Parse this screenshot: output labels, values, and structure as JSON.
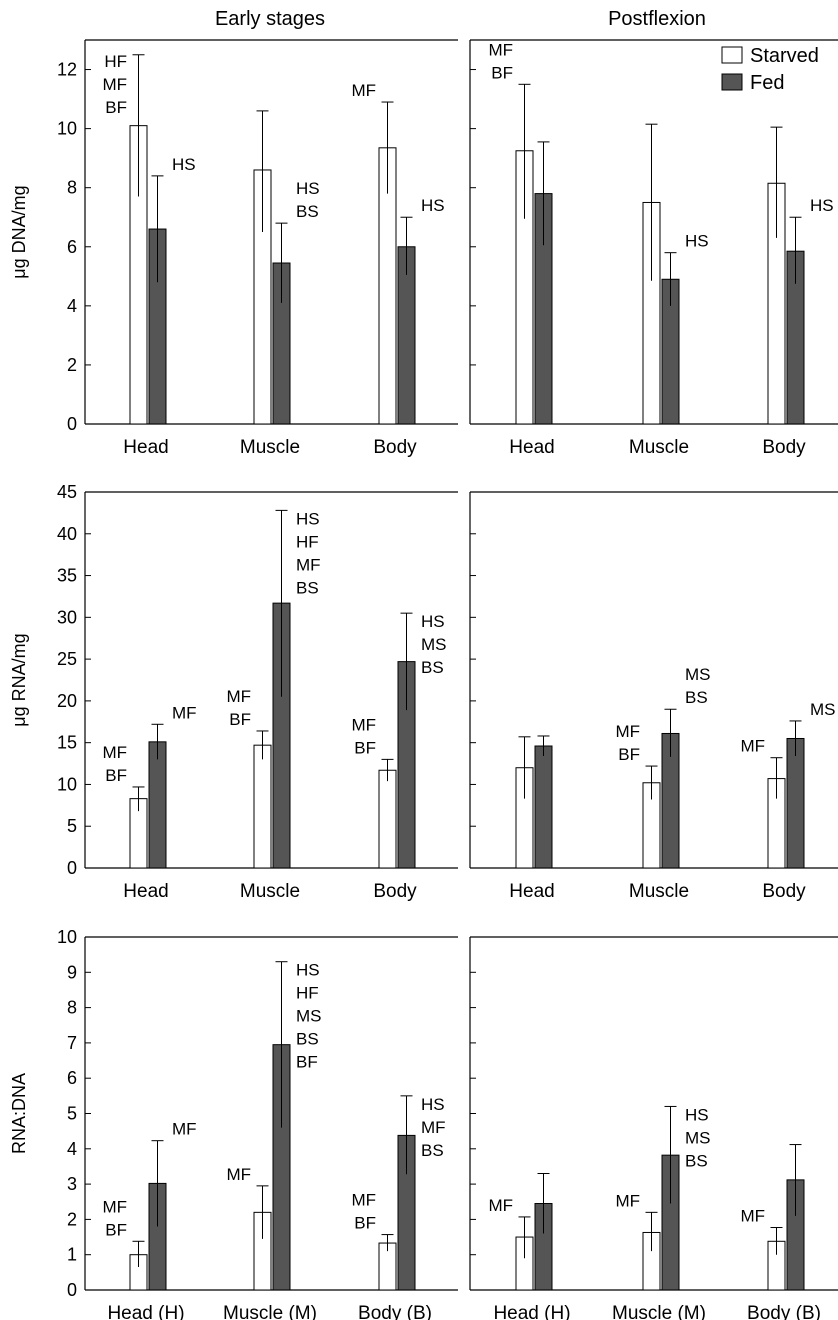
{
  "titles": [
    "Early stages",
    "Postflexion"
  ],
  "legend": [
    {
      "label": "Starved",
      "color": "#ffffff"
    },
    {
      "label": "Fed",
      "color": "#555555"
    }
  ],
  "colors": {
    "starved": "#ffffff",
    "fed": "#555555",
    "axis": "#000000"
  },
  "chart_data": [
    {
      "type": "bar",
      "panel": "Early stages - DNA",
      "ylabel": "μg DNA/mg",
      "ylim": [
        0,
        13
      ],
      "yticks": [
        0,
        2,
        4,
        6,
        8,
        10,
        12
      ],
      "categories": [
        "Head",
        "Muscle",
        "Body"
      ],
      "series": [
        {
          "name": "Starved",
          "values": [
            10.1,
            8.6,
            9.35
          ],
          "lower": [
            7.7,
            6.5,
            7.8
          ],
          "upper": [
            12.5,
            10.6,
            10.9
          ]
        },
        {
          "name": "Fed",
          "values": [
            6.6,
            5.45,
            6.0
          ],
          "lower": [
            4.8,
            4.1,
            5.05
          ],
          "upper": [
            8.4,
            6.8,
            7.0
          ]
        }
      ],
      "annotations": [
        [
          [
            "HF",
            "MF",
            "BF"
          ],
          [
            "HS"
          ]
        ],
        [
          [],
          [
            "HS",
            "BS"
          ]
        ],
        [
          [
            "MF"
          ],
          [
            "HS"
          ]
        ]
      ]
    },
    {
      "type": "bar",
      "panel": "Postflexion - DNA",
      "ylabel": "μg DNA/mg",
      "ylim": [
        0,
        13
      ],
      "yticks": [
        0,
        2,
        4,
        6,
        8,
        10,
        12
      ],
      "categories": [
        "Head",
        "Muscle",
        "Body"
      ],
      "series": [
        {
          "name": "Starved",
          "values": [
            9.25,
            7.5,
            8.15
          ],
          "lower": [
            6.95,
            4.85,
            6.3
          ],
          "upper": [
            11.5,
            10.15,
            10.05
          ]
        },
        {
          "name": "Fed",
          "values": [
            7.8,
            4.9,
            5.85
          ],
          "lower": [
            6.05,
            4.0,
            4.75
          ],
          "upper": [
            9.55,
            5.8,
            7.0
          ]
        }
      ],
      "annotations": [
        [
          [
            "MF",
            "BF"
          ],
          []
        ],
        [
          [],
          [
            "HS"
          ]
        ],
        [
          [],
          [
            "HS"
          ]
        ]
      ]
    },
    {
      "type": "bar",
      "panel": "Early stages - RNA",
      "ylabel": "μg RNA/mg",
      "ylim": [
        0,
        45
      ],
      "yticks": [
        0,
        5,
        10,
        15,
        20,
        25,
        30,
        35,
        40,
        45
      ],
      "categories": [
        "Head",
        "Muscle",
        "Body"
      ],
      "series": [
        {
          "name": "Starved",
          "values": [
            8.3,
            14.7,
            11.7
          ],
          "lower": [
            6.8,
            13.0,
            10.4
          ],
          "upper": [
            9.7,
            16.4,
            13.0
          ]
        },
        {
          "name": "Fed",
          "values": [
            15.1,
            31.7,
            24.7
          ],
          "lower": [
            13.0,
            20.5,
            18.9
          ],
          "upper": [
            17.2,
            42.8,
            30.5
          ]
        }
      ],
      "annotations": [
        [
          [
            "MF",
            "BF"
          ],
          [
            "MF"
          ]
        ],
        [
          [
            "MF",
            "BF"
          ],
          [
            "HS",
            "HF",
            "MF",
            "BS"
          ]
        ],
        [
          [
            "MF",
            "BF"
          ],
          [
            "HS",
            "MS",
            "BS"
          ]
        ]
      ]
    },
    {
      "type": "bar",
      "panel": "Postflexion - RNA",
      "ylabel": "μg RNA/mg",
      "ylim": [
        0,
        45
      ],
      "yticks": [
        0,
        5,
        10,
        15,
        20,
        25,
        30,
        35,
        40,
        45
      ],
      "categories": [
        "Head",
        "Muscle",
        "Body"
      ],
      "series": [
        {
          "name": "Starved",
          "values": [
            12.0,
            10.2,
            10.7
          ],
          "lower": [
            8.3,
            8.2,
            8.3
          ],
          "upper": [
            15.7,
            12.2,
            13.2
          ]
        },
        {
          "name": "Fed",
          "values": [
            14.6,
            16.1,
            15.5
          ],
          "lower": [
            13.4,
            13.3,
            13.4
          ],
          "upper": [
            15.8,
            19.0,
            17.6
          ]
        }
      ],
      "annotations": [
        [
          [],
          []
        ],
        [
          [
            "MF",
            "BF"
          ],
          [
            "MS",
            "BS"
          ]
        ],
        [
          [
            "MF"
          ],
          [
            "MS"
          ]
        ]
      ]
    },
    {
      "type": "bar",
      "panel": "Early stages - RNA:DNA",
      "ylabel": "RNA:DNA",
      "ylim": [
        0,
        10
      ],
      "yticks": [
        0,
        1,
        2,
        3,
        4,
        5,
        6,
        7,
        8,
        9,
        10
      ],
      "categories": [
        "Head (H)",
        "Muscle (M)",
        "Body (B)"
      ],
      "series": [
        {
          "name": "Starved",
          "values": [
            1.0,
            2.2,
            1.33
          ],
          "lower": [
            0.65,
            1.45,
            1.1
          ],
          "upper": [
            1.38,
            2.95,
            1.57
          ]
        },
        {
          "name": "Fed",
          "values": [
            3.02,
            6.95,
            4.38
          ],
          "lower": [
            1.8,
            4.6,
            3.28
          ],
          "upper": [
            4.23,
            9.3,
            5.5
          ]
        }
      ],
      "annotations": [
        [
          [
            "MF",
            "BF"
          ],
          [
            "MF"
          ]
        ],
        [
          [
            "MF"
          ],
          [
            "HS",
            "HF",
            "MS",
            "BS",
            "BF"
          ]
        ],
        [
          [
            "MF",
            "BF"
          ],
          [
            "HS",
            "MF",
            "BS"
          ]
        ]
      ]
    },
    {
      "type": "bar",
      "panel": "Postflexion - RNA:DNA",
      "ylabel": "RNA:DNA",
      "ylim": [
        0,
        10
      ],
      "yticks": [
        0,
        1,
        2,
        3,
        4,
        5,
        6,
        7,
        8,
        9,
        10
      ],
      "categories": [
        "Head (H)",
        "Muscle (M)",
        "Body (B)"
      ],
      "series": [
        {
          "name": "Starved",
          "values": [
            1.5,
            1.63,
            1.38
          ],
          "lower": [
            0.9,
            1.1,
            1.0
          ],
          "upper": [
            2.07,
            2.2,
            1.77
          ]
        },
        {
          "name": "Fed",
          "values": [
            2.45,
            3.82,
            3.12
          ],
          "lower": [
            1.6,
            2.45,
            2.1
          ],
          "upper": [
            3.3,
            5.2,
            4.12
          ]
        }
      ],
      "annotations": [
        [
          [
            "MF"
          ],
          []
        ],
        [
          [
            "MF"
          ],
          [
            "HS",
            "MS",
            "BS"
          ]
        ],
        [
          [
            "MF"
          ],
          []
        ]
      ]
    }
  ]
}
